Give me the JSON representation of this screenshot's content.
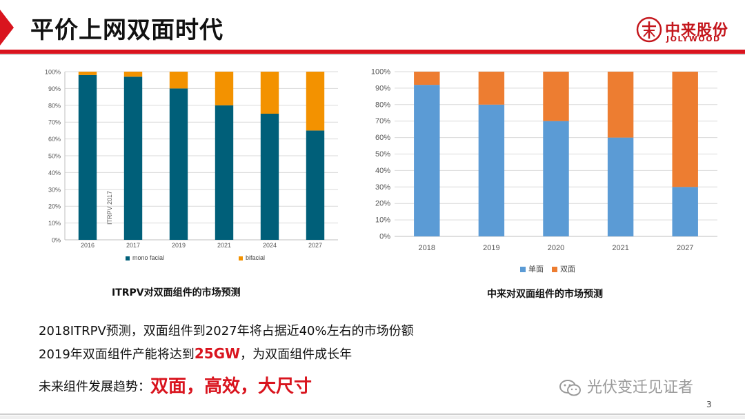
{
  "header": {
    "title": "平价上网双面时代",
    "logo_cn": "中来股份",
    "logo_en": "JOLYWOOD"
  },
  "chart_data": [
    {
      "type": "bar",
      "stacked": true,
      "categories": [
        "2016",
        "2017",
        "2019",
        "2021",
        "2024",
        "2027"
      ],
      "series": [
        {
          "name": "mono facial",
          "values": [
            98,
            97,
            90,
            80,
            75,
            65
          ],
          "color": "#005f79"
        },
        {
          "name": "bifacial",
          "values": [
            2,
            3,
            10,
            20,
            25,
            35
          ],
          "color": "#f39200"
        }
      ],
      "y_ticks": [
        "0%",
        "10%",
        "20%",
        "30%",
        "40%",
        "50%",
        "60%",
        "70%",
        "80%",
        "90%",
        "100%"
      ],
      "ylim": [
        0,
        100
      ],
      "annotation": "ITRPV 2017",
      "grid": true,
      "legend_position": "bottom",
      "caption": "ITRPV对双面组件的市场预测"
    },
    {
      "type": "bar",
      "stacked": true,
      "categories": [
        "2018",
        "2019",
        "2020",
        "2021",
        "2027"
      ],
      "series": [
        {
          "name": "单面",
          "values": [
            92,
            80,
            70,
            60,
            30
          ],
          "color": "#5b9bd5"
        },
        {
          "name": "双面",
          "values": [
            8,
            20,
            30,
            40,
            70
          ],
          "color": "#ed7d31"
        }
      ],
      "y_ticks": [
        "0%",
        "10%",
        "20%",
        "30%",
        "40%",
        "50%",
        "60%",
        "70%",
        "80%",
        "90%",
        "100%"
      ],
      "ylim": [
        0,
        100
      ],
      "grid": true,
      "legend_position": "bottom",
      "caption": "中来对双面组件的市场预测"
    }
  ],
  "body": {
    "line1": "2018ITRPV预测，双面组件到2027年将占据近40%左右的市场份额",
    "line2_pre": "2019年双面组件产能将达到",
    "line2_hl": "25GW",
    "line2_post": "，为双面组件成长年",
    "line3_pre": "未来组件发展趋势：",
    "line3_hl": "双面，高效，大尺寸"
  },
  "footer": {
    "watermark": "光伏变迁见证者",
    "page": "3"
  }
}
